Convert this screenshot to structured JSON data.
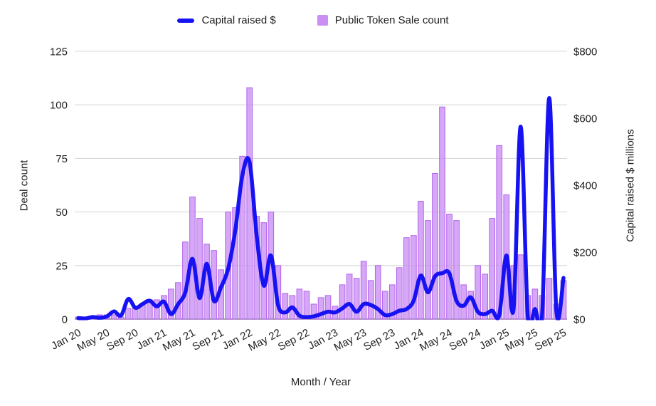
{
  "legend": {
    "items": [
      {
        "label": "Capital raised $",
        "swatch": "line-swatch",
        "color": "#1612f2"
      },
      {
        "label": "Public Token Sale count",
        "swatch": "square-swatch",
        "color": "#cb8ef3"
      }
    ]
  },
  "chart_data": {
    "type": "combo-bar-line",
    "grid": true,
    "legend_position": "top",
    "x_axis": {
      "title": "Month / Year",
      "tick_every": 4,
      "tick_labels": [
        "Jan 20",
        "May 20",
        "Sep 20",
        "Jan 21",
        "May 21",
        "Sep 21",
        "Jan 22",
        "May 22",
        "Sep 22",
        "Jan 23",
        "May 23",
        "Sep 23",
        "Jan 24",
        "May 24",
        "Sep 24",
        "Jan 25",
        "May 25",
        "Sep 25"
      ]
    },
    "y_left": {
      "title": "Deal count",
      "ticks": [
        0,
        25,
        50,
        75,
        100,
        125
      ],
      "range": [
        0,
        125
      ]
    },
    "y_right": {
      "title": "Capital raised $ millions",
      "ticks": [
        "$0",
        "$200",
        "$400",
        "$600",
        "$800"
      ],
      "tick_values": [
        0,
        200,
        400,
        600,
        800
      ],
      "range": [
        0,
        800
      ]
    },
    "categories": [
      "Jan 20",
      "Feb 20",
      "Mar 20",
      "Apr 20",
      "May 20",
      "Jun 20",
      "Jul 20",
      "Aug 20",
      "Sep 20",
      "Oct 20",
      "Nov 20",
      "Dec 20",
      "Jan 21",
      "Feb 21",
      "Mar 21",
      "Apr 21",
      "May 21",
      "Jun 21",
      "Jul 21",
      "Aug 21",
      "Sep 21",
      "Oct 21",
      "Nov 21",
      "Dec 21",
      "Jan 22",
      "Feb 22",
      "Mar 22",
      "Apr 22",
      "May 22",
      "Jun 22",
      "Jul 22",
      "Aug 22",
      "Sep 22",
      "Oct 22",
      "Nov 22",
      "Dec 22",
      "Jan 23",
      "Feb 23",
      "Mar 23",
      "Apr 23",
      "May 23",
      "Jun 23",
      "Jul 23",
      "Aug 23",
      "Sep 23",
      "Oct 23",
      "Nov 23",
      "Dec 23",
      "Jan 24",
      "Feb 24",
      "Mar 24",
      "Apr 24",
      "May 24",
      "Jun 24",
      "Jul 24",
      "Aug 24",
      "Sep 24",
      "Oct 24",
      "Nov 24",
      "Dec 24",
      "Jan 25",
      "Feb 25",
      "Mar 25",
      "Apr 25",
      "May 25",
      "Jun 25",
      "Jul 25",
      "Aug 25",
      "Sep 25"
    ],
    "series": [
      {
        "name": "Public Token Sale count",
        "type": "bar",
        "axis": "left",
        "fill": "#cb8ef3",
        "stroke": "#b263eb",
        "values": [
          1,
          1,
          1,
          2,
          2,
          2,
          1,
          5,
          6,
          7,
          9,
          9,
          11,
          14,
          17,
          36,
          57,
          47,
          35,
          32,
          23,
          50,
          52,
          76,
          108,
          48,
          45,
          50,
          25,
          12,
          11,
          14,
          13,
          7,
          10,
          11,
          6,
          16,
          21,
          19,
          27,
          18,
          25,
          13,
          16,
          24,
          38,
          39,
          55,
          46,
          68,
          99,
          49,
          46,
          16,
          13,
          25,
          21,
          47,
          81,
          58,
          25,
          30,
          11,
          14,
          11,
          19,
          7,
          18
        ]
      },
      {
        "name": "Capital raised $",
        "type": "line",
        "axis": "right",
        "stroke": "#1612f2",
        "values": [
          3,
          2,
          6,
          4,
          8,
          23,
          11,
          60,
          34,
          45,
          55,
          38,
          52,
          15,
          45,
          80,
          180,
          63,
          165,
          55,
          95,
          150,
          265,
          430,
          470,
          250,
          100,
          190,
          42,
          20,
          35,
          10,
          6,
          8,
          15,
          22,
          20,
          32,
          45,
          22,
          45,
          42,
          30,
          12,
          15,
          25,
          30,
          55,
          130,
          80,
          128,
          137,
          137,
          55,
          40,
          65,
          22,
          15,
          25,
          12,
          190,
          30,
          575,
          8,
          30,
          12,
          660,
          25,
          123
        ]
      }
    ],
    "colors": {
      "grid": "#d9d9d9",
      "baseline": "#808080",
      "text": "#1f1f1f",
      "background": "#ffffff"
    }
  }
}
